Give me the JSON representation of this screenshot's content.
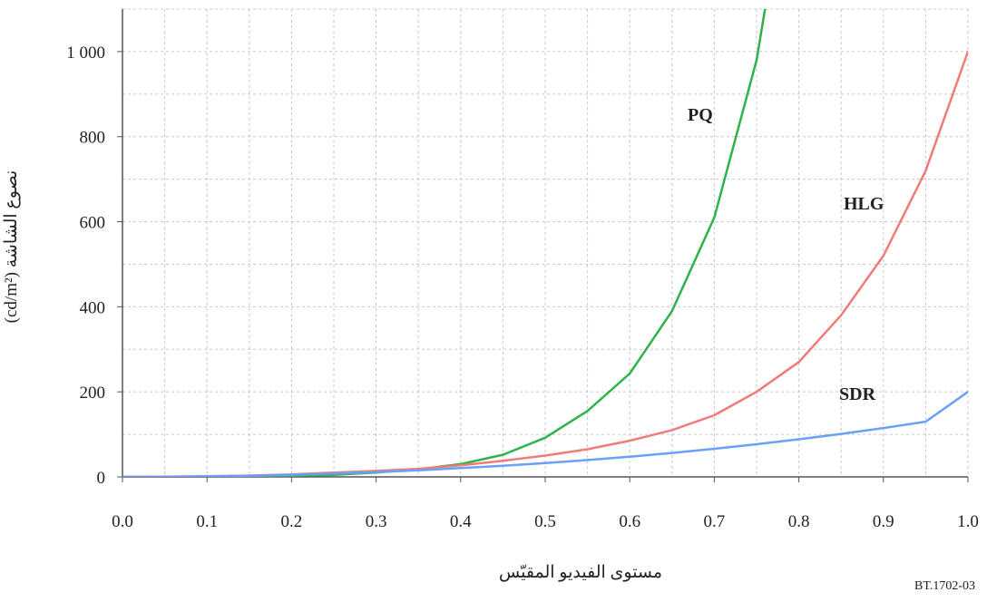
{
  "chart_data": {
    "type": "line",
    "title": "",
    "xlabel": "مستوى الفيديو المقيّس",
    "ylabel": "نصوع الشاشة (cd/m²)",
    "xlim": [
      0,
      1
    ],
    "ylim": [
      0,
      1100
    ],
    "x_ticks": [
      0.0,
      0.1,
      0.2,
      0.3,
      0.4,
      0.5,
      0.6,
      0.7,
      0.8,
      0.9,
      1.0
    ],
    "x_tick_labels": [
      "0.0",
      "0.1",
      "0.2",
      "0.3",
      "0.4",
      "0.5",
      "0.6",
      "0.7",
      "0.8",
      "0.9",
      "1.0"
    ],
    "y_ticks": [
      0,
      200,
      400,
      600,
      800,
      1000
    ],
    "y_tick_labels": [
      "0",
      "200",
      "400",
      "600",
      "800",
      "1 000"
    ],
    "grid": true,
    "series": [
      {
        "name": "PQ",
        "color": "#2db34a",
        "x": [
          0.0,
          0.05,
          0.1,
          0.15,
          0.2,
          0.25,
          0.3,
          0.35,
          0.4,
          0.45,
          0.5,
          0.55,
          0.6,
          0.65,
          0.7,
          0.75,
          0.76
        ],
        "y": [
          0,
          0.2,
          0.4,
          1,
          2.5,
          5,
          10,
          18,
          30,
          52,
          92,
          155,
          243,
          390,
          610,
          980,
          1100
        ]
      },
      {
        "name": "HLG",
        "color": "#f07b78",
        "x": [
          0.0,
          0.05,
          0.1,
          0.15,
          0.2,
          0.25,
          0.3,
          0.35,
          0.4,
          0.45,
          0.5,
          0.55,
          0.6,
          0.65,
          0.7,
          0.75,
          0.8,
          0.85,
          0.9,
          0.95,
          1.0
        ],
        "y": [
          0,
          0.5,
          1.5,
          3,
          6,
          10,
          14,
          19,
          27,
          38,
          50,
          65,
          85,
          110,
          145,
          200,
          270,
          380,
          520,
          720,
          1000
        ]
      },
      {
        "name": "SDR",
        "color": "#6aa0f8",
        "x": [
          0.0,
          0.05,
          0.1,
          0.15,
          0.2,
          0.25,
          0.3,
          0.35,
          0.4,
          0.45,
          0.5,
          0.55,
          0.6,
          0.65,
          0.7,
          0.75,
          0.8,
          0.85,
          0.9,
          0.95,
          1.0
        ],
        "y": [
          0,
          0.3,
          1.2,
          2.8,
          5,
          7.8,
          11,
          15.6,
          20.6,
          26.2,
          32.5,
          39.6,
          47.5,
          56.3,
          66,
          76.8,
          88.5,
          101,
          115,
          129.8,
          200
        ]
      }
    ],
    "series_labels": [
      "PQ",
      "HLG",
      "SDR"
    ],
    "figure_id": "BT.1702-03"
  }
}
